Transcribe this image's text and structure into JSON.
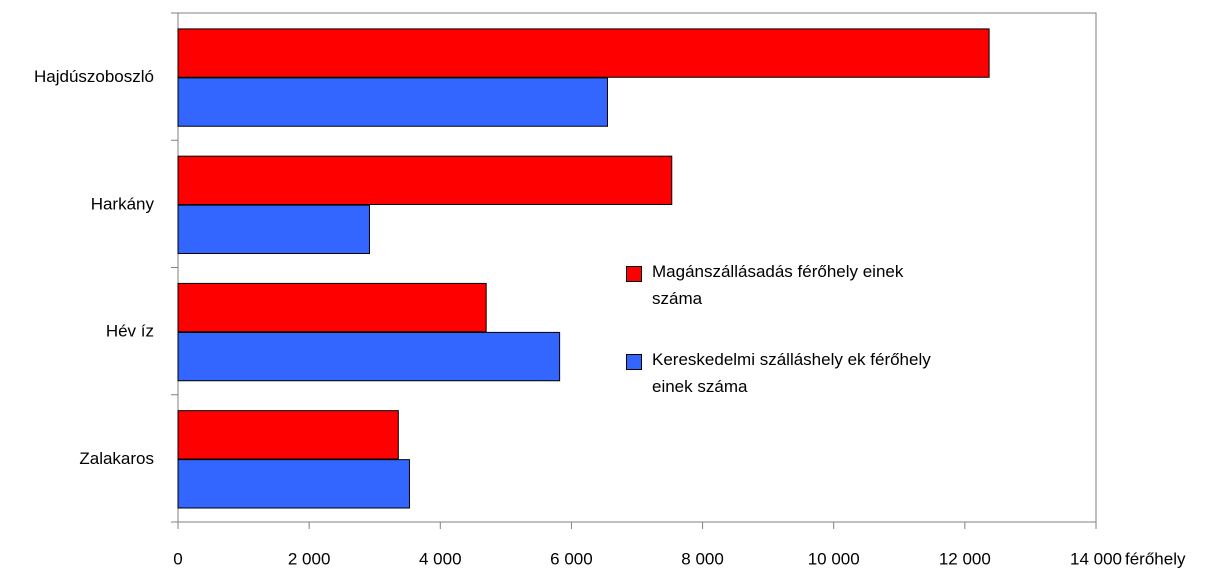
{
  "chart_data": {
    "type": "bar",
    "orientation": "horizontal",
    "categories": [
      "Hajdúszoboszló",
      "Harkány",
      "Hév íz",
      "Zalakaros"
    ],
    "series": [
      {
        "name": "Magánszállásadás férőhely einek száma",
        "color": "#ff0000",
        "values": [
          12370,
          7530,
          4700,
          3360
        ]
      },
      {
        "name": "Kereskedelmi szálláshely ek férőhely einek száma",
        "color": "#3366ff",
        "values": [
          6550,
          2920,
          5820,
          3530
        ]
      }
    ],
    "xlabel": "férőhely",
    "xlim": [
      0,
      14000
    ],
    "xticks": [
      0,
      {
        "value": 2000,
        "label": "2 000"
      },
      {
        "value": 4000,
        "label": "4 000"
      },
      {
        "value": 6000,
        "label": "6 000"
      },
      {
        "value": 8000,
        "label": "8 000"
      },
      {
        "value": 10000,
        "label": "10 000"
      },
      {
        "value": 12000,
        "label": "12 000"
      },
      {
        "value": 14000,
        "label": "14 000"
      }
    ],
    "grid": false,
    "legend": "right"
  }
}
